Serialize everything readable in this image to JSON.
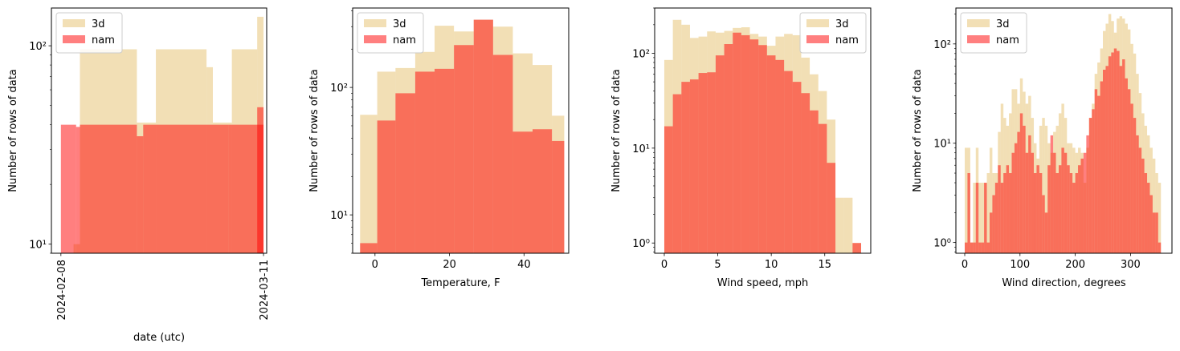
{
  "colors": {
    "3d": "#e6c06b",
    "nam": "#ff0000"
  },
  "chart_data": [
    {
      "type": "bar",
      "xlabel": "date (utc)",
      "ylabel": "Number of rows of data",
      "yscale": "log",
      "ylim": [
        9,
        155
      ],
      "xlim": [
        -1.5,
        32.5
      ],
      "x_is_date": true,
      "x_tick_labels": [
        {
          "x": 0,
          "label": "2024-02-08"
        },
        {
          "x": 32,
          "label": "2024-03-11"
        }
      ],
      "y_tick_labels": [
        {
          "v": 10,
          "label": "10¹"
        },
        {
          "v": 100,
          "label": "10²"
        }
      ],
      "legend": "top-left",
      "series": [
        {
          "name": "3d",
          "bins": [
            [
              2.0,
              3.0,
              10
            ],
            [
              3.0,
              12.0,
              96
            ],
            [
              12.0,
              15.0,
              41
            ],
            [
              15.0,
              23.0,
              96
            ],
            [
              23.0,
              24.0,
              78
            ],
            [
              24.0,
              27.0,
              41
            ],
            [
              27.0,
              31.0,
              96
            ],
            [
              31.0,
              32.0,
              140
            ]
          ]
        },
        {
          "name": "nam",
          "bins": [
            [
              0.0,
              2.4,
              40
            ],
            [
              2.4,
              3.0,
              39
            ],
            [
              3.0,
              12.0,
              40
            ],
            [
              12.0,
              13.0,
              35
            ],
            [
              13.0,
              24.0,
              40
            ],
            [
              24.0,
              26.5,
              40
            ],
            [
              26.5,
              32.0,
              40
            ],
            [
              31.0,
              32.0,
              49
            ]
          ]
        }
      ]
    },
    {
      "type": "bar",
      "xlabel": "Temperature, F",
      "ylabel": "Number of rows of data",
      "yscale": "log",
      "ylim": [
        5,
        420
      ],
      "xlim": [
        -6,
        52
      ],
      "x_ticks": [
        0,
        20,
        40
      ],
      "y_tick_labels": [
        {
          "v": 10,
          "label": "10¹"
        },
        {
          "v": 100,
          "label": "10²"
        }
      ],
      "legend": "top-left",
      "series": [
        {
          "name": "3d",
          "bins": [
            [
              -4.0,
              0.6,
              61
            ],
            [
              0.6,
              5.5,
              133
            ],
            [
              5.5,
              10.8,
              142
            ],
            [
              10.8,
              16.0,
              190
            ],
            [
              16.0,
              21.2,
              305
            ],
            [
              21.2,
              26.5,
              275
            ],
            [
              26.5,
              31.7,
              340
            ],
            [
              31.7,
              37.0,
              300
            ],
            [
              37.0,
              42.3,
              185
            ],
            [
              42.3,
              47.5,
              150
            ],
            [
              47.5,
              50.8,
              60
            ]
          ]
        },
        {
          "name": "nam",
          "bins": [
            [
              -4.0,
              0.6,
              6
            ],
            [
              0.6,
              5.5,
              55
            ],
            [
              5.5,
              10.8,
              90
            ],
            [
              10.8,
              16.0,
              133
            ],
            [
              16.0,
              21.2,
              140
            ],
            [
              21.2,
              26.5,
              215
            ],
            [
              26.5,
              31.7,
              340
            ],
            [
              31.7,
              37.0,
              180
            ],
            [
              37.0,
              42.3,
              45
            ],
            [
              42.3,
              47.5,
              47
            ],
            [
              47.5,
              50.8,
              38
            ]
          ]
        }
      ]
    },
    {
      "type": "bar",
      "xlabel": "Wind speed, mph",
      "ylabel": "Number of rows of data",
      "yscale": "log",
      "ylim": [
        0.78,
        300
      ],
      "xlim": [
        -0.9,
        19.3
      ],
      "x_ticks": [
        0,
        5,
        10,
        15
      ],
      "y_tick_labels": [
        {
          "v": 1,
          "label": "10⁰"
        },
        {
          "v": 10,
          "label": "10¹"
        },
        {
          "v": 100,
          "label": "10²"
        }
      ],
      "legend": "top-right",
      "series": [
        {
          "name": "3d",
          "bins": [
            [
              0.0,
              0.8,
              85
            ],
            [
              0.8,
              1.6,
              225
            ],
            [
              1.6,
              2.4,
              200
            ],
            [
              2.4,
              3.2,
              145
            ],
            [
              3.2,
              4.0,
              150
            ],
            [
              4.0,
              4.8,
              170
            ],
            [
              4.8,
              5.6,
              165
            ],
            [
              5.6,
              6.4,
              172
            ],
            [
              6.4,
              7.2,
              185
            ],
            [
              7.2,
              8.0,
              188
            ],
            [
              8.0,
              8.8,
              160
            ],
            [
              8.8,
              9.6,
              150
            ],
            [
              9.6,
              10.4,
              120
            ],
            [
              10.4,
              11.2,
              150
            ],
            [
              11.2,
              12.0,
              160
            ],
            [
              12.0,
              12.8,
              155
            ],
            [
              12.8,
              13.6,
              90
            ],
            [
              13.6,
              14.4,
              60
            ],
            [
              14.4,
              15.2,
              40
            ],
            [
              15.2,
              16.0,
              20
            ],
            [
              16.0,
              16.8,
              3
            ],
            [
              16.8,
              17.6,
              3
            ],
            [
              17.6,
              18.4,
              1
            ]
          ]
        },
        {
          "name": "nam",
          "bins": [
            [
              0.0,
              0.8,
              17
            ],
            [
              0.8,
              1.6,
              37
            ],
            [
              1.6,
              2.4,
              50
            ],
            [
              2.4,
              3.2,
              53
            ],
            [
              3.2,
              4.0,
              62
            ],
            [
              4.0,
              4.8,
              63
            ],
            [
              4.8,
              5.6,
              95
            ],
            [
              5.6,
              6.4,
              125
            ],
            [
              6.4,
              7.2,
              165
            ],
            [
              7.2,
              8.0,
              155
            ],
            [
              8.0,
              8.8,
              140
            ],
            [
              8.8,
              9.6,
              122
            ],
            [
              9.6,
              10.4,
              95
            ],
            [
              10.4,
              11.2,
              85
            ],
            [
              11.2,
              12.0,
              65
            ],
            [
              12.0,
              12.8,
              50
            ],
            [
              12.8,
              13.6,
              38
            ],
            [
              13.6,
              14.4,
              25
            ],
            [
              14.4,
              15.2,
              18
            ],
            [
              15.2,
              16.0,
              7
            ],
            [
              16.0,
              16.8,
              0.5
            ],
            [
              16.8,
              17.6,
              0.5
            ],
            [
              17.6,
              18.4,
              1
            ]
          ]
        }
      ]
    },
    {
      "type": "bar",
      "xlabel": "Wind direction, degrees",
      "ylabel": "Number of rows of data",
      "yscale": "log",
      "ylim": [
        0.78,
        230
      ],
      "xlim": [
        -16,
        375
      ],
      "x_ticks": [
        0,
        100,
        200,
        300
      ],
      "y_tick_labels": [
        {
          "v": 1,
          "label": "10⁰"
        },
        {
          "v": 10,
          "label": "10¹"
        },
        {
          "v": 100,
          "label": "10²"
        }
      ],
      "legend": "top-left",
      "step": 5,
      "start": 0,
      "series": [
        {
          "name": "3d",
          "values": [
            9,
            9,
            1,
            4,
            9,
            4,
            4,
            4,
            5,
            9,
            5,
            5,
            13,
            25,
            18,
            15,
            20,
            35,
            35,
            25,
            45,
            33,
            25,
            30,
            18,
            10,
            7,
            15,
            18,
            15,
            10,
            8,
            13,
            15,
            20,
            25,
            18,
            10,
            10,
            9,
            8,
            9,
            8,
            4,
            9,
            18,
            25,
            50,
            65,
            90,
            135,
            160,
            200,
            170,
            130,
            180,
            190,
            180,
            160,
            140,
            100,
            80,
            50,
            32,
            20,
            15,
            12,
            9,
            7,
            5,
            4
          ]
        },
        {
          "name": "nam",
          "values": [
            1,
            5,
            1,
            1,
            4,
            1,
            1,
            4,
            1,
            2,
            3,
            4,
            6,
            4,
            5,
            6,
            5,
            8,
            10,
            13,
            20,
            15,
            8,
            12,
            8,
            5,
            6,
            5,
            3,
            2,
            6,
            12,
            8,
            5,
            6,
            9,
            8,
            6,
            5,
            4,
            5,
            6,
            7,
            8,
            12,
            18,
            22,
            35,
            30,
            42,
            55,
            60,
            75,
            82,
            90,
            85,
            60,
            70,
            45,
            35,
            25,
            18,
            12,
            9,
            7,
            5,
            4,
            3,
            2,
            2,
            1
          ]
        }
      ]
    }
  ]
}
